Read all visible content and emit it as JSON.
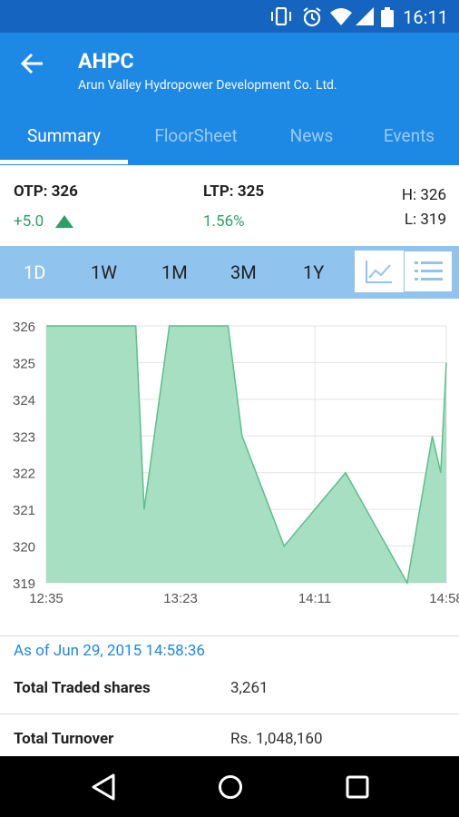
{
  "status_bar": {
    "time": "16:11"
  },
  "header": {
    "symbol": "AHPC",
    "company_name": "Arun Valley Hydropower Development Co. Ltd."
  },
  "tabs": [
    {
      "label": "Summary",
      "active": true
    },
    {
      "label": "FloorSheet",
      "active": false
    },
    {
      "label": "News",
      "active": false
    },
    {
      "label": "Events",
      "active": false
    }
  ],
  "quote": {
    "otp": "OTP: 326",
    "change": "+5.0",
    "ltp": "LTP: 325",
    "percent_change": "1.56%",
    "high": "H: 326",
    "low": "L: 319"
  },
  "ranges": [
    {
      "label": "1D",
      "active": true
    },
    {
      "label": "1W",
      "active": false
    },
    {
      "label": "1M",
      "active": false
    },
    {
      "label": "3M",
      "active": false
    },
    {
      "label": "1Y",
      "active": false
    }
  ],
  "chart_data": {
    "type": "area",
    "y_ticks": [
      "326",
      "325",
      "324",
      "323",
      "322",
      "321",
      "320",
      "319"
    ],
    "x_ticks": [
      "12:35",
      "13:23",
      "14:11",
      "14:58"
    ],
    "ylim": [
      319,
      326
    ],
    "x": [
      "12:35",
      "13:07",
      "13:10",
      "13:19",
      "13:40",
      "13:45",
      "14:00",
      "14:22",
      "14:44",
      "14:53",
      "14:56",
      "14:58"
    ],
    "values": [
      326,
      326,
      321,
      326,
      326,
      323,
      320,
      322,
      319,
      323,
      322,
      325
    ],
    "fill_color": "#A6DFC2",
    "line_color": "#5DBE8C",
    "grid": true
  },
  "as_of": "As of Jun 29, 2015 14:58:36",
  "stats": [
    {
      "label": "Total Traded shares",
      "value": "3,261"
    },
    {
      "label": "Total Turnover",
      "value": "Rs. 1,048,160"
    }
  ],
  "colors": {
    "primary": "#1E88E5",
    "status_bar": "#1565C0",
    "range_bar": "#90C4EE",
    "positive": "#2E9E6B"
  }
}
